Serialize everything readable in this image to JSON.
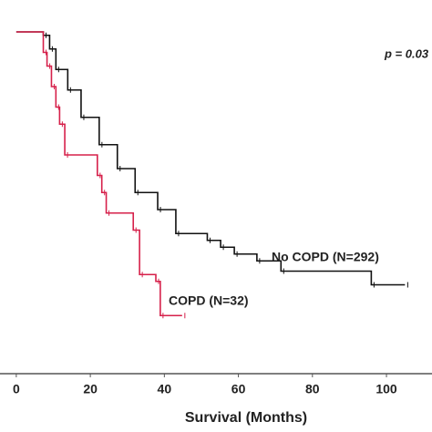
{
  "chart_data": {
    "type": "step",
    "x_label": "Survival (Months)",
    "annotation": "p = 0.03",
    "xlim": [
      -4.4,
      112.3
    ],
    "xticks": [
      0,
      20,
      40,
      60,
      80,
      100
    ],
    "ylim": [
      0,
      1
    ],
    "series": [
      {
        "name": "No COPD (N=292)",
        "color": "#111111",
        "x": [
          0,
          7.3,
          9,
          10.7,
          13.9,
          17.5,
          22.4,
          27.3,
          32.1,
          38.2,
          43.1,
          51.6,
          55.2,
          58.9,
          65,
          71.5,
          95.9,
          105
        ],
        "values": [
          1.0,
          0.99,
          0.95,
          0.89,
          0.83,
          0.75,
          0.67,
          0.6,
          0.53,
          0.48,
          0.41,
          0.39,
          0.37,
          0.35,
          0.33,
          0.3,
          0.26,
          0.26
        ]
      },
      {
        "name": "COPD (N=32)",
        "color": "#d6204a",
        "x": [
          0,
          7.3,
          8.3,
          9.5,
          10.7,
          11.7,
          13.1,
          21.9,
          23.1,
          24.3,
          31.6,
          33.3,
          37.7,
          38.9,
          44.8
        ],
        "values": [
          1.0,
          0.94,
          0.9,
          0.84,
          0.78,
          0.73,
          0.64,
          0.58,
          0.53,
          0.47,
          0.42,
          0.29,
          0.27,
          0.17,
          0.17
        ]
      }
    ]
  }
}
